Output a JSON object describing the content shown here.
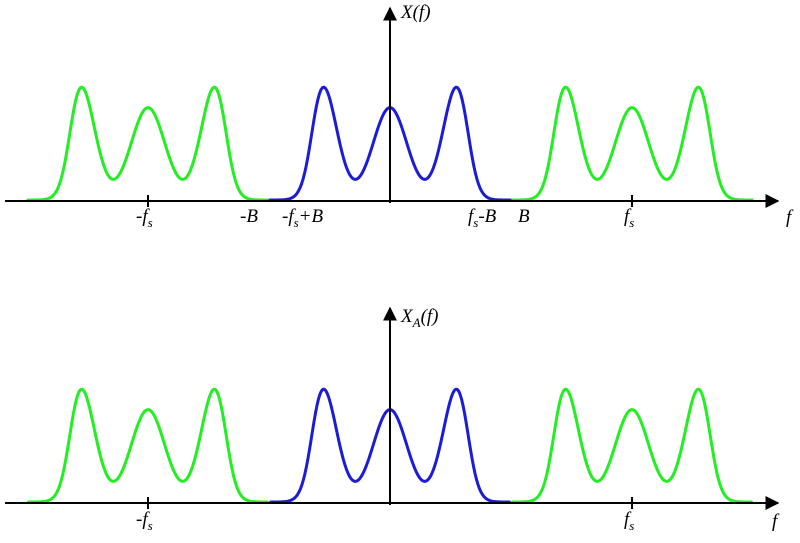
{
  "colors": {
    "baseband": "#1c1cd6",
    "replica": "#22ee22",
    "axis": "#000000"
  },
  "top_plot": {
    "y_axis_label": {
      "base": "X",
      "arg": "(f)"
    },
    "x_axis_label": "f",
    "tick_labels": {
      "neg_fs": {
        "pre": "-f",
        "sub": "s",
        "post": ""
      },
      "neg_B": {
        "text": "-B"
      },
      "neg_fs_plus_B": {
        "pre": "-f",
        "sub": "s",
        "post": "+B"
      },
      "fs_minus_B": {
        "pre": "f",
        "sub": "s",
        "post": "-B"
      },
      "B": {
        "text": "B"
      },
      "fs": {
        "pre": "f",
        "sub": "s",
        "post": ""
      }
    }
  },
  "bottom_plot": {
    "y_axis_label": {
      "base": "X",
      "sub": "A",
      "arg": "(f)"
    },
    "x_axis_label": "f",
    "tick_labels": {
      "neg_fs": {
        "pre": "-f",
        "sub": "s",
        "post": ""
      },
      "fs": {
        "pre": "f",
        "sub": "s",
        "post": ""
      }
    }
  }
}
